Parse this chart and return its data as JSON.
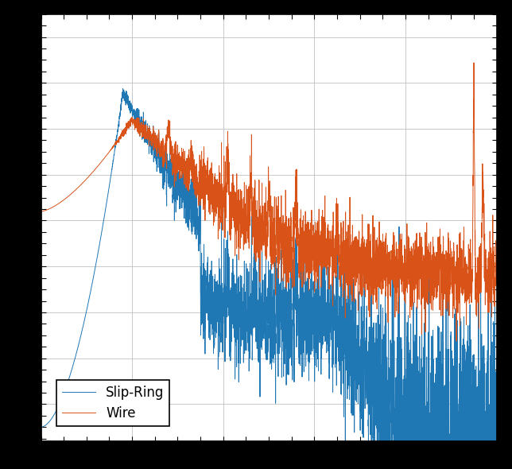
{
  "title": "",
  "xlabel": "",
  "ylabel": "",
  "line_colors": [
    "#1f77b4",
    "#d95319"
  ],
  "line_labels": [
    "Slip-Ring",
    "Wire"
  ],
  "legend_loc": "lower left",
  "background_color": "#ffffff",
  "outer_background": "#000000",
  "grid_color": "#c0c0c0",
  "figsize": [
    6.44,
    5.9
  ],
  "dpi": 100,
  "tick_color": "#000000"
}
